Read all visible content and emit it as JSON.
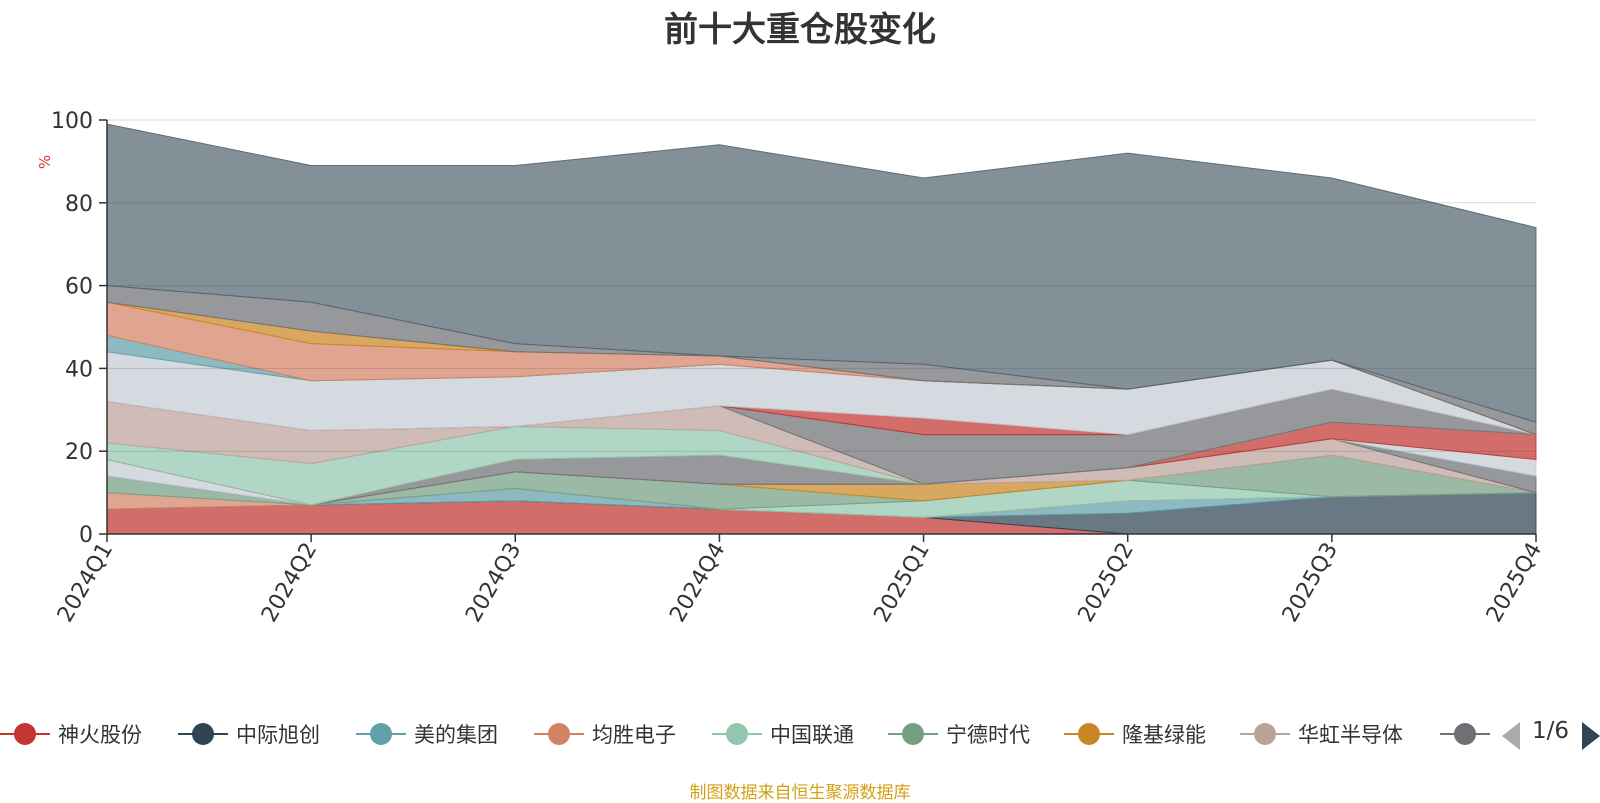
{
  "chart_data": {
    "type": "area",
    "stacked": true,
    "title": "前十大重仓股变化",
    "ylabel": "%",
    "ylim": [
      0,
      100
    ],
    "yticks": [
      0,
      20,
      40,
      60,
      80,
      100
    ],
    "grid": true,
    "x": [
      "2024Q1",
      "2024Q2",
      "2024Q3",
      "2024Q4",
      "2025Q1",
      "2025Q2",
      "2025Q3",
      "2025Q4"
    ],
    "series": [
      {
        "name": "神火股份",
        "color": "#c23531",
        "values": [
          6,
          7,
          8,
          6,
          4,
          0,
          0,
          0
        ]
      },
      {
        "name": "中际旭创",
        "color": "#2f4554",
        "values": [
          0,
          0,
          0,
          0,
          0,
          5,
          9,
          10
        ]
      },
      {
        "name": "美的集团",
        "color": "#61a0a8",
        "values": [
          0,
          0,
          3,
          0,
          0,
          3,
          0,
          0
        ]
      },
      {
        "name": "均胜电子",
        "color": "#d48265",
        "values": [
          4,
          0,
          0,
          0,
          0,
          0,
          0,
          0
        ]
      },
      {
        "name": "中国联通",
        "color": "#91c7ae",
        "values": [
          0,
          0,
          0,
          0,
          4,
          5,
          0,
          0
        ]
      },
      {
        "name": "宁德时代",
        "color": "#749f83",
        "values": [
          4,
          0,
          4,
          6,
          0,
          0,
          10,
          0
        ]
      },
      {
        "name": "隆基绿能",
        "color": "#ca8622",
        "values": [
          0,
          0,
          0,
          0,
          4,
          0,
          0,
          0
        ]
      },
      {
        "name": "华虹半导体",
        "color": "#bda29a",
        "values": [
          0,
          0,
          0,
          0,
          0,
          3,
          4,
          0
        ]
      },
      {
        "name": "",
        "color": "#6e7074",
        "values": [
          0,
          0,
          3,
          7,
          0,
          0,
          0,
          4
        ]
      },
      {
        "name": "",
        "color": "#546570",
        "values": [
          0,
          0,
          0,
          0,
          0,
          0,
          0,
          0
        ]
      },
      {
        "name": "",
        "color": "#c4ccd3",
        "values": [
          4,
          0,
          0,
          0,
          0,
          0,
          0,
          4
        ]
      },
      {
        "name": "",
        "color": "#c23531",
        "values": [
          0,
          0,
          0,
          0,
          0,
          0,
          4,
          6
        ]
      },
      {
        "name": "",
        "color": "#91c7ae",
        "values": [
          4,
          10,
          8,
          6,
          0,
          0,
          0,
          0
        ]
      },
      {
        "name": "",
        "color": "#bda29a",
        "values": [
          10,
          8,
          0,
          6,
          0,
          0,
          0,
          0
        ]
      },
      {
        "name": "",
        "color": "#6e7074",
        "values": [
          0,
          0,
          0,
          0,
          12,
          8,
          8,
          0
        ]
      },
      {
        "name": "",
        "color": "#c23531",
        "values": [
          0,
          0,
          0,
          0,
          4,
          0,
          0,
          0
        ]
      },
      {
        "name": "",
        "color": "#c4ccd3",
        "values": [
          12,
          12,
          12,
          10,
          9,
          11,
          7,
          0
        ]
      },
      {
        "name": "",
        "color": "#61a0a8",
        "values": [
          4,
          0,
          0,
          0,
          0,
          0,
          0,
          0
        ]
      },
      {
        "name": "",
        "color": "#d48265",
        "values": [
          8,
          9,
          6,
          2,
          0,
          0,
          0,
          0
        ]
      },
      {
        "name": "",
        "color": "#ca8622",
        "values": [
          0,
          3,
          0,
          0,
          0,
          0,
          0,
          0
        ]
      },
      {
        "name": "",
        "color": "#6e7074",
        "values": [
          4,
          7,
          2,
          0,
          4,
          0,
          0,
          3
        ]
      },
      {
        "name": "",
        "color": "#546570",
        "values": [
          39,
          33,
          43,
          51,
          45,
          57,
          44,
          47
        ]
      }
    ]
  },
  "legend": {
    "items": [
      {
        "label": "神火股份",
        "color": "#c23531"
      },
      {
        "label": "中际旭创",
        "color": "#2f4554"
      },
      {
        "label": "美的集团",
        "color": "#61a0a8"
      },
      {
        "label": "均胜电子",
        "color": "#d48265"
      },
      {
        "label": "中国联通",
        "color": "#91c7ae"
      },
      {
        "label": "宁德时代",
        "color": "#749f83"
      },
      {
        "label": "隆基绿能",
        "color": "#ca8622"
      },
      {
        "label": "华虹半导体",
        "color": "#bda29a"
      },
      {
        "label": "",
        "color": "#6e7074"
      }
    ],
    "page_text": "1/6"
  },
  "source": "制图数据来自恒生聚源数据库"
}
